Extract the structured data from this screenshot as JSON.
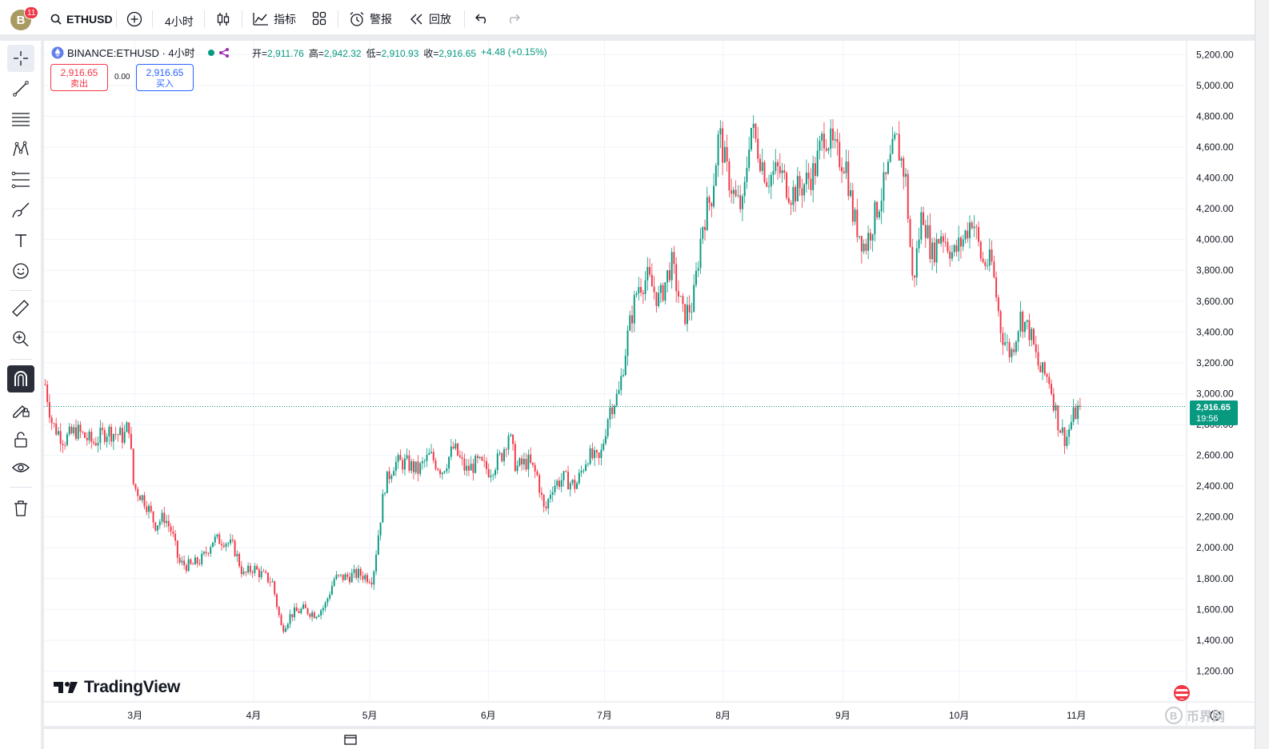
{
  "toolbar": {
    "avatar_letter": "B",
    "notifications": "11",
    "symbol": "ETHUSD",
    "interval": "4小时",
    "indicators_label": "指标",
    "alerts_label": "警报",
    "replay_label": "回放"
  },
  "legend": {
    "title": "BINANCE:ETHUSD · 4小时",
    "open_label": "开=",
    "open": "2,911.76",
    "high_label": "高=",
    "high": "2,942.32",
    "low_label": "低=",
    "low": "2,910.93",
    "close_label": "收=",
    "close": "2,916.65",
    "change": "+4.48 (+0.15%)"
  },
  "trade": {
    "sell_price": "2,916.65",
    "sell_label": "卖出",
    "spread": "0.00",
    "buy_price": "2,916.65",
    "buy_label": "买入"
  },
  "price_tag": {
    "price": "2,916.65",
    "countdown": "19:56"
  },
  "branding": {
    "tradingview": "TradingView",
    "watermark": "币界网"
  },
  "colors": {
    "up": "#089981",
    "down": "#f23645",
    "grid": "#f0f3fa"
  },
  "chart_data": {
    "type": "candlestick",
    "symbol": "BINANCE:ETHUSD",
    "interval": "4小时",
    "y_ticks": [
      1200,
      1400,
      1600,
      1800,
      2000,
      2200,
      2400,
      2600,
      2800,
      3000,
      3200,
      3400,
      3600,
      3800,
      4000,
      4200,
      4400,
      4600,
      4800,
      5000,
      5200
    ],
    "y_tick_labels": [
      "1,200.00",
      "1,400.00",
      "1,600.00",
      "1,800.00",
      "2,000.00",
      "2,200.00",
      "2,400.00",
      "2,600.00",
      "2,800.00",
      "3,000.00",
      "3,200.00",
      "3,400.00",
      "3,600.00",
      "3,800.00",
      "4,000.00",
      "4,200.00",
      "4,400.00",
      "4,600.00",
      "4,800.00",
      "5,000.00",
      "5,200.00"
    ],
    "ylim": [
      1140,
      5290
    ],
    "x_labels": [
      "3月",
      "4月",
      "5月",
      "6月",
      "7月",
      "8月",
      "9月",
      "10月",
      "11月"
    ],
    "x_label_positions": [
      3.8,
      8.75,
      13.6,
      18.55,
      23.4,
      28.35,
      33.35,
      38.2,
      43.1
    ],
    "x_range": [
      0,
      47.6
    ],
    "current_price": 2916.65,
    "price_path": [
      {
        "t": 0.0,
        "p": 3060
      },
      {
        "t": 0.3,
        "p": 2800
      },
      {
        "t": 0.8,
        "p": 2700
      },
      {
        "t": 1.3,
        "p": 2760
      },
      {
        "t": 2.0,
        "p": 2680
      },
      {
        "t": 2.6,
        "p": 2760
      },
      {
        "t": 3.3,
        "p": 2720
      },
      {
        "t": 3.5,
        "p": 2810
      },
      {
        "t": 3.7,
        "p": 2400
      },
      {
        "t": 4.2,
        "p": 2300
      },
      {
        "t": 4.6,
        "p": 2150
      },
      {
        "t": 5.0,
        "p": 2200
      },
      {
        "t": 5.3,
        "p": 2100
      },
      {
        "t": 5.6,
        "p": 1900
      },
      {
        "t": 6.1,
        "p": 1880
      },
      {
        "t": 6.6,
        "p": 1930
      },
      {
        "t": 7.0,
        "p": 2050
      },
      {
        "t": 7.5,
        "p": 2050
      },
      {
        "t": 7.9,
        "p": 2000
      },
      {
        "t": 8.3,
        "p": 1820
      },
      {
        "t": 8.7,
        "p": 1870
      },
      {
        "t": 9.1,
        "p": 1820
      },
      {
        "t": 9.5,
        "p": 1780
      },
      {
        "t": 9.9,
        "p": 1470
      },
      {
        "t": 10.3,
        "p": 1570
      },
      {
        "t": 10.8,
        "p": 1600
      },
      {
        "t": 11.3,
        "p": 1570
      },
      {
        "t": 11.7,
        "p": 1620
      },
      {
        "t": 12.1,
        "p": 1800
      },
      {
        "t": 12.6,
        "p": 1810
      },
      {
        "t": 13.1,
        "p": 1830
      },
      {
        "t": 13.7,
        "p": 1800
      },
      {
        "t": 14.2,
        "p": 2400
      },
      {
        "t": 14.6,
        "p": 2550
      },
      {
        "t": 15.1,
        "p": 2550
      },
      {
        "t": 15.6,
        "p": 2500
      },
      {
        "t": 16.1,
        "p": 2600
      },
      {
        "t": 16.6,
        "p": 2500
      },
      {
        "t": 17.1,
        "p": 2650
      },
      {
        "t": 17.6,
        "p": 2500
      },
      {
        "t": 18.1,
        "p": 2550
      },
      {
        "t": 18.6,
        "p": 2500
      },
      {
        "t": 19.1,
        "p": 2600
      },
      {
        "t": 19.4,
        "p": 2750
      },
      {
        "t": 19.7,
        "p": 2520
      },
      {
        "t": 20.2,
        "p": 2560
      },
      {
        "t": 20.6,
        "p": 2460
      },
      {
        "t": 20.9,
        "p": 2220
      },
      {
        "t": 21.2,
        "p": 2400
      },
      {
        "t": 21.7,
        "p": 2450
      },
      {
        "t": 22.2,
        "p": 2400
      },
      {
        "t": 22.7,
        "p": 2600
      },
      {
        "t": 23.2,
        "p": 2560
      },
      {
        "t": 23.6,
        "p": 2900
      },
      {
        "t": 24.0,
        "p": 3000
      },
      {
        "t": 24.4,
        "p": 3400
      },
      {
        "t": 24.8,
        "p": 3700
      },
      {
        "t": 25.2,
        "p": 3750
      },
      {
        "t": 25.7,
        "p": 3600
      },
      {
        "t": 26.2,
        "p": 3850
      },
      {
        "t": 26.7,
        "p": 3500
      },
      {
        "t": 27.1,
        "p": 3580
      },
      {
        "t": 27.5,
        "p": 4100
      },
      {
        "t": 27.9,
        "p": 4300
      },
      {
        "t": 28.2,
        "p": 4700
      },
      {
        "t": 28.5,
        "p": 4450
      },
      {
        "t": 28.9,
        "p": 4250
      },
      {
        "t": 29.2,
        "p": 4200
      },
      {
        "t": 29.5,
        "p": 4750
      },
      {
        "t": 29.8,
        "p": 4600
      },
      {
        "t": 30.2,
        "p": 4400
      },
      {
        "t": 30.7,
        "p": 4450
      },
      {
        "t": 31.2,
        "p": 4300
      },
      {
        "t": 31.7,
        "p": 4350
      },
      {
        "t": 32.2,
        "p": 4450
      },
      {
        "t": 32.6,
        "p": 4700
      },
      {
        "t": 33.1,
        "p": 4550
      },
      {
        "t": 33.5,
        "p": 4500
      },
      {
        "t": 33.8,
        "p": 4150
      },
      {
        "t": 34.3,
        "p": 3950
      },
      {
        "t": 34.8,
        "p": 4200
      },
      {
        "t": 35.2,
        "p": 4400
      },
      {
        "t": 35.6,
        "p": 4650
      },
      {
        "t": 36.0,
        "p": 4400
      },
      {
        "t": 36.3,
        "p": 3700
      },
      {
        "t": 36.7,
        "p": 4200
      },
      {
        "t": 37.1,
        "p": 3900
      },
      {
        "t": 37.5,
        "p": 4050
      },
      {
        "t": 38.0,
        "p": 3900
      },
      {
        "t": 38.4,
        "p": 4000
      },
      {
        "t": 38.8,
        "p": 4150
      },
      {
        "t": 39.2,
        "p": 3850
      },
      {
        "t": 39.6,
        "p": 3850
      },
      {
        "t": 40.0,
        "p": 3400
      },
      {
        "t": 40.4,
        "p": 3250
      },
      {
        "t": 40.8,
        "p": 3500
      },
      {
        "t": 41.2,
        "p": 3400
      },
      {
        "t": 41.6,
        "p": 3150
      },
      {
        "t": 42.0,
        "p": 3100
      },
      {
        "t": 42.4,
        "p": 2800
      },
      {
        "t": 42.7,
        "p": 2700
      },
      {
        "t": 43.0,
        "p": 2850
      },
      {
        "t": 43.3,
        "p": 2916
      }
    ]
  }
}
